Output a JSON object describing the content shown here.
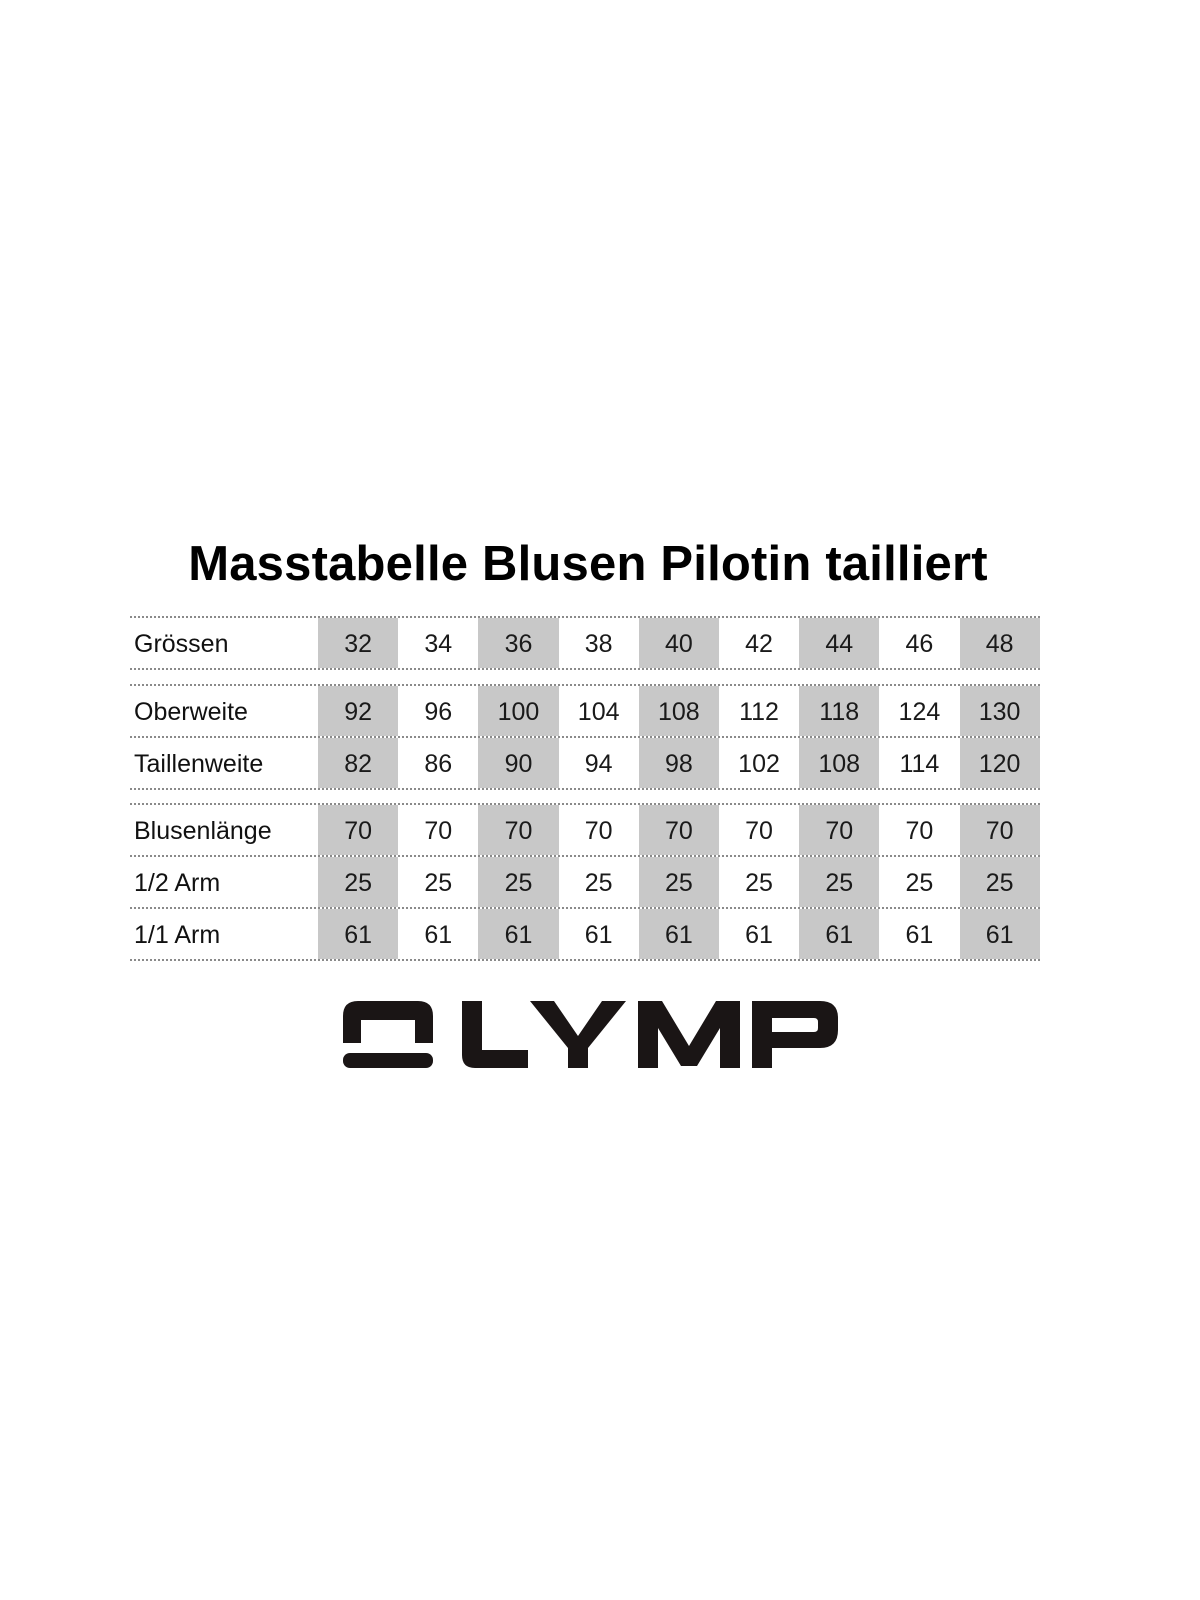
{
  "title": "Masstabelle Blusen Pilotin tailliert",
  "shaded_color": "#c8c8c8",
  "shaded_sizes": [
    "32",
    "36",
    "40",
    "44",
    "48"
  ],
  "groups": [
    {
      "rows": [
        {
          "label": "Grössen",
          "values": [
            "32",
            "34",
            "36",
            "38",
            "40",
            "42",
            "44",
            "46",
            "48"
          ]
        }
      ]
    },
    {
      "rows": [
        {
          "label": "Oberweite",
          "values": [
            "92",
            "96",
            "100",
            "104",
            "108",
            "112",
            "118",
            "124",
            "130"
          ]
        },
        {
          "label": "Taillenweite",
          "values": [
            "82",
            "86",
            "90",
            "94",
            "98",
            "102",
            "108",
            "114",
            "120"
          ]
        }
      ]
    },
    {
      "rows": [
        {
          "label": "Blusenlänge",
          "values": [
            "70",
            "70",
            "70",
            "70",
            "70",
            "70",
            "70",
            "70",
            "70"
          ]
        },
        {
          "label": "1/2 Arm",
          "values": [
            "25",
            "25",
            "25",
            "25",
            "25",
            "25",
            "25",
            "25",
            "25"
          ]
        },
        {
          "label": "1/1 Arm",
          "values": [
            "61",
            "61",
            "61",
            "61",
            "61",
            "61",
            "61",
            "61",
            "61"
          ]
        }
      ]
    }
  ],
  "logo": {
    "text": "OLYMP",
    "color": "#1a1515"
  }
}
